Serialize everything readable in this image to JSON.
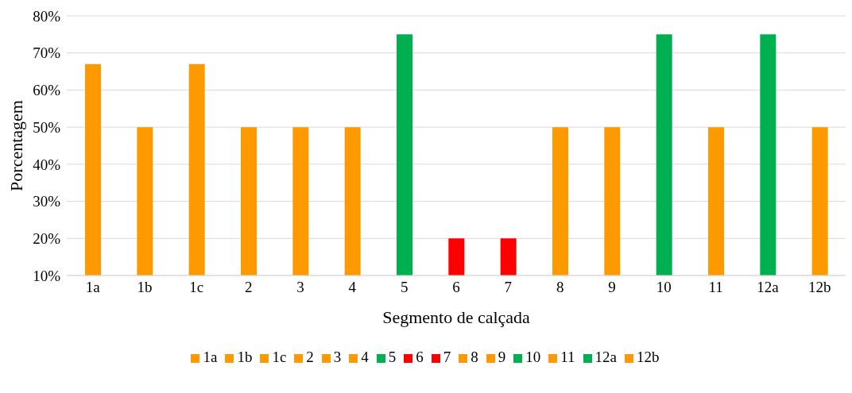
{
  "chart_data": {
    "type": "bar",
    "xlabel": "Segmento de calçada",
    "ylabel": "Porcentagem",
    "categories": [
      "1a",
      "1b",
      "1c",
      "2",
      "3",
      "4",
      "5",
      "6",
      "7",
      "8",
      "9",
      "10",
      "11",
      "12a",
      "12b"
    ],
    "series": [
      {
        "name": "1a",
        "color": "#ff9900",
        "values": [
          67,
          null,
          null,
          null,
          null,
          null,
          null,
          null,
          null,
          null,
          null,
          null,
          null,
          null,
          null
        ]
      },
      {
        "name": "1b",
        "color": "#ff9900",
        "values": [
          null,
          50,
          null,
          null,
          null,
          null,
          null,
          null,
          null,
          null,
          null,
          null,
          null,
          null,
          null
        ]
      },
      {
        "name": "1c",
        "color": "#ff9900",
        "values": [
          null,
          null,
          67,
          null,
          null,
          null,
          null,
          null,
          null,
          null,
          null,
          null,
          null,
          null,
          null
        ]
      },
      {
        "name": "2",
        "color": "#ff9900",
        "values": [
          null,
          null,
          null,
          50,
          null,
          null,
          null,
          null,
          null,
          null,
          null,
          null,
          null,
          null,
          null
        ]
      },
      {
        "name": "3",
        "color": "#ff9900",
        "values": [
          null,
          null,
          null,
          null,
          50,
          null,
          null,
          null,
          null,
          null,
          null,
          null,
          null,
          null,
          null
        ]
      },
      {
        "name": "4",
        "color": "#ff9900",
        "values": [
          null,
          null,
          null,
          null,
          null,
          50,
          null,
          null,
          null,
          null,
          null,
          null,
          null,
          null,
          null
        ]
      },
      {
        "name": "5",
        "color": "#00b050",
        "values": [
          null,
          null,
          null,
          null,
          null,
          null,
          75,
          null,
          null,
          null,
          null,
          null,
          null,
          null,
          null
        ]
      },
      {
        "name": "6",
        "color": "#ff0000",
        "values": [
          null,
          null,
          null,
          null,
          null,
          null,
          null,
          20,
          null,
          null,
          null,
          null,
          null,
          null,
          null
        ]
      },
      {
        "name": "7",
        "color": "#ff0000",
        "values": [
          null,
          null,
          null,
          null,
          null,
          null,
          null,
          null,
          20,
          null,
          null,
          null,
          null,
          null,
          null
        ]
      },
      {
        "name": "8",
        "color": "#ff9900",
        "values": [
          null,
          null,
          null,
          null,
          null,
          null,
          null,
          null,
          null,
          50,
          null,
          null,
          null,
          null,
          null
        ]
      },
      {
        "name": "9",
        "color": "#ff9900",
        "values": [
          null,
          null,
          null,
          null,
          null,
          null,
          null,
          null,
          null,
          null,
          50,
          null,
          null,
          null,
          null
        ]
      },
      {
        "name": "10",
        "color": "#00b050",
        "values": [
          null,
          null,
          null,
          null,
          null,
          null,
          null,
          null,
          null,
          null,
          null,
          75,
          null,
          null,
          null
        ]
      },
      {
        "name": "11",
        "color": "#ff9900",
        "values": [
          null,
          null,
          null,
          null,
          null,
          null,
          null,
          null,
          null,
          null,
          null,
          null,
          50,
          null,
          null
        ]
      },
      {
        "name": "12a",
        "color": "#00b050",
        "values": [
          null,
          null,
          null,
          null,
          null,
          null,
          null,
          null,
          null,
          null,
          null,
          null,
          null,
          75,
          null
        ]
      },
      {
        "name": "12b",
        "color": "#ff9900",
        "values": [
          null,
          null,
          null,
          null,
          null,
          null,
          null,
          null,
          null,
          null,
          null,
          null,
          null,
          null,
          50
        ]
      }
    ],
    "ylim": [
      10,
      80
    ],
    "yticks": [
      {
        "value": 10,
        "label": "10%"
      },
      {
        "value": 20,
        "label": "20%"
      },
      {
        "value": 30,
        "label": "30%"
      },
      {
        "value": 40,
        "label": "40%"
      },
      {
        "value": 50,
        "label": "50%"
      },
      {
        "value": 60,
        "label": "60%"
      },
      {
        "value": 70,
        "label": "70%"
      },
      {
        "value": 80,
        "label": "80%"
      }
    ],
    "grid": "y",
    "legend": "bottom"
  }
}
